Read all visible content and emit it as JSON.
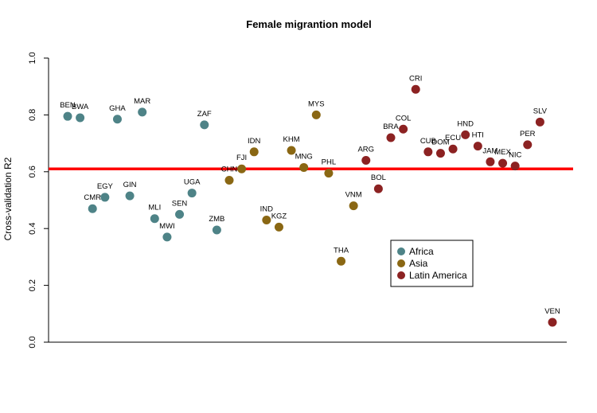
{
  "chart_data": {
    "type": "scatter",
    "title": "Female migrantion model",
    "xlabel": "",
    "ylabel": "Cross-validation R2",
    "ylim": [
      0.0,
      1.0
    ],
    "y_ticks": [
      "0.0",
      "0.2",
      "0.4",
      "0.6",
      "0.8",
      "1.0"
    ],
    "reference_line": {
      "y": 0.61,
      "color": "#ff0000"
    },
    "legend": {
      "placement": "bottom-right"
    },
    "groups": [
      {
        "name": "Africa",
        "color": "#4e8387"
      },
      {
        "name": "Asia",
        "color": "#8a6713"
      },
      {
        "name": "Latin America",
        "color": "#8c2222"
      }
    ],
    "points": [
      {
        "label": "BEN",
        "group": "Africa",
        "x": 1,
        "y": 0.795
      },
      {
        "label": "BWA",
        "group": "Africa",
        "x": 2,
        "y": 0.79
      },
      {
        "label": "CMR",
        "group": "Africa",
        "x": 3,
        "y": 0.47
      },
      {
        "label": "EGY",
        "group": "Africa",
        "x": 4,
        "y": 0.51
      },
      {
        "label": "GHA",
        "group": "Africa",
        "x": 5,
        "y": 0.785
      },
      {
        "label": "GIN",
        "group": "Africa",
        "x": 6,
        "y": 0.515
      },
      {
        "label": "MAR",
        "group": "Africa",
        "x": 7,
        "y": 0.81
      },
      {
        "label": "MLI",
        "group": "Africa",
        "x": 8,
        "y": 0.435
      },
      {
        "label": "MWI",
        "group": "Africa",
        "x": 9,
        "y": 0.37
      },
      {
        "label": "SEN",
        "group": "Africa",
        "x": 10,
        "y": 0.45
      },
      {
        "label": "UGA",
        "group": "Africa",
        "x": 11,
        "y": 0.525
      },
      {
        "label": "ZAF",
        "group": "Africa",
        "x": 12,
        "y": 0.765
      },
      {
        "label": "ZMB",
        "group": "Africa",
        "x": 13,
        "y": 0.395
      },
      {
        "label": "CHN",
        "group": "Asia",
        "x": 14,
        "y": 0.57
      },
      {
        "label": "FJI",
        "group": "Asia",
        "x": 15,
        "y": 0.61
      },
      {
        "label": "IDN",
        "group": "Asia",
        "x": 16,
        "y": 0.67
      },
      {
        "label": "IND",
        "group": "Asia",
        "x": 17,
        "y": 0.43
      },
      {
        "label": "KGZ",
        "group": "Asia",
        "x": 18,
        "y": 0.405
      },
      {
        "label": "KHM",
        "group": "Asia",
        "x": 19,
        "y": 0.675
      },
      {
        "label": "MNG",
        "group": "Asia",
        "x": 20,
        "y": 0.615
      },
      {
        "label": "MYS",
        "group": "Asia",
        "x": 21,
        "y": 0.8
      },
      {
        "label": "PHL",
        "group": "Asia",
        "x": 22,
        "y": 0.595
      },
      {
        "label": "THA",
        "group": "Asia",
        "x": 23,
        "y": 0.285
      },
      {
        "label": "VNM",
        "group": "Asia",
        "x": 24,
        "y": 0.48
      },
      {
        "label": "ARG",
        "group": "Latin America",
        "x": 25,
        "y": 0.64
      },
      {
        "label": "BOL",
        "group": "Latin America",
        "x": 26,
        "y": 0.54
      },
      {
        "label": "BRA",
        "group": "Latin America",
        "x": 27,
        "y": 0.72
      },
      {
        "label": "COL",
        "group": "Latin America",
        "x": 28,
        "y": 0.75
      },
      {
        "label": "CRI",
        "group": "Latin America",
        "x": 29,
        "y": 0.89
      },
      {
        "label": "CUB",
        "group": "Latin America",
        "x": 30,
        "y": 0.67
      },
      {
        "label": "DOM",
        "group": "Latin America",
        "x": 31,
        "y": 0.665
      },
      {
        "label": "ECU",
        "group": "Latin America",
        "x": 32,
        "y": 0.68
      },
      {
        "label": "HND",
        "group": "Latin America",
        "x": 33,
        "y": 0.73
      },
      {
        "label": "HTI",
        "group": "Latin America",
        "x": 34,
        "y": 0.69
      },
      {
        "label": "JAM",
        "group": "Latin America",
        "x": 35,
        "y": 0.635
      },
      {
        "label": "MEX",
        "group": "Latin America",
        "x": 36,
        "y": 0.63
      },
      {
        "label": "NIC",
        "group": "Latin America",
        "x": 37,
        "y": 0.62
      },
      {
        "label": "PER",
        "group": "Latin America",
        "x": 38,
        "y": 0.695
      },
      {
        "label": "SLV",
        "group": "Latin America",
        "x": 39,
        "y": 0.775
      },
      {
        "label": "VEN",
        "group": "Latin America",
        "x": 40,
        "y": 0.07
      }
    ]
  }
}
